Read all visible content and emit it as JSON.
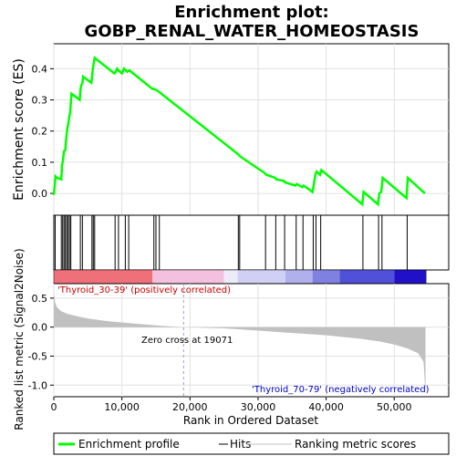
{
  "chart_data": {
    "type": "line",
    "title": "Enrichment plot:\nGOBP_RENAL_WATER_HOMEOSTASIS",
    "es_panel": {
      "ylabel": "Enrichment score (ES)",
      "yticks": [
        0.0,
        0.1,
        0.2,
        0.3,
        0.4
      ],
      "ytick_labels": [
        "0.0",
        "0.1",
        "0.2",
        "0.3",
        "0.4"
      ],
      "ylim": [
        -0.07,
        0.48
      ],
      "grid": true,
      "series": [
        {
          "name": "Enrichment profile",
          "color": "#00ff00",
          "x": [
            0,
            250,
            500,
            1100,
            1200,
            1300,
            1500,
            1700,
            1800,
            2000,
            2100,
            2300,
            2400,
            2600,
            3800,
            3900,
            4000,
            4200,
            4300,
            5500,
            5600,
            5700,
            5800,
            5900,
            6000,
            8900,
            9100,
            9300,
            9500,
            10000,
            10300,
            10800,
            11100,
            14500,
            14800,
            15200,
            27100,
            27300,
            31000,
            31200,
            32500,
            32700,
            33800,
            34000,
            35500,
            35700,
            36500,
            36700,
            38000,
            38200,
            38400,
            38600,
            39100,
            39300,
            45300,
            45500,
            47600,
            47800,
            48100,
            48300,
            51800,
            52000,
            54500
          ],
          "y": [
            -0.005,
            0.055,
            0.05,
            0.045,
            0.09,
            0.1,
            0.135,
            0.14,
            0.17,
            0.21,
            0.22,
            0.25,
            0.26,
            0.32,
            0.3,
            0.33,
            0.345,
            0.355,
            0.375,
            0.355,
            0.37,
            0.395,
            0.41,
            0.42,
            0.435,
            0.385,
            0.39,
            0.4,
            0.395,
            0.385,
            0.4,
            0.39,
            0.395,
            0.335,
            0.335,
            0.33,
            0.125,
            0.12,
            0.065,
            0.06,
            0.05,
            0.045,
            0.04,
            0.035,
            0.025,
            0.03,
            0.02,
            0.025,
            0.005,
            0.03,
            0.06,
            0.07,
            0.06,
            0.075,
            -0.035,
            0.005,
            -0.035,
            0.0,
            0.005,
            0.05,
            -0.015,
            0.05,
            0.0
          ]
        }
      ]
    },
    "hits": [
      200,
      1100,
      1300,
      1500,
      1700,
      1900,
      2100,
      2300,
      2500,
      3900,
      4200,
      5600,
      5800,
      6000,
      9000,
      9500,
      10500,
      11000,
      14700,
      15000,
      15500,
      27100,
      27300,
      31100,
      32600,
      33900,
      35600,
      36600,
      38100,
      38500,
      39200,
      45400,
      47700,
      48200,
      51900
    ],
    "rank_panel": {
      "ylabel": "Ranked list metric (Signal2Noise)",
      "yticks": [
        0.5,
        0.0,
        -0.5,
        -1.0
      ],
      "ytick_labels": [
        "0.5",
        "0.0",
        "-0.5",
        "-1.0"
      ],
      "ylim": [
        -1.2,
        0.75
      ],
      "grid": true,
      "fill_color": "#c0c0c0",
      "profile_x": [
        0,
        200,
        500,
        1000,
        2000,
        3000,
        5000,
        8000,
        12000,
        16000,
        19071,
        25000,
        30000,
        35000,
        40000,
        45000,
        48000,
        50000,
        52000,
        53500,
        54300,
        54600
      ],
      "profile_y": [
        0.62,
        0.42,
        0.34,
        0.28,
        0.23,
        0.2,
        0.15,
        0.1,
        0.06,
        0.02,
        0.0,
        -0.02,
        -0.06,
        -0.1,
        -0.14,
        -0.2,
        -0.25,
        -0.3,
        -0.37,
        -0.45,
        -0.6,
        -1.15
      ],
      "positive_label": "'Thyroid_30-39' (positively correlated)",
      "negative_label": "'Thyroid_70-79' (negatively correlated)",
      "zero_cross_label": "Zero cross at 19071",
      "zero_cross": 19071
    },
    "xlabel": "Rank in Ordered Dataset",
    "xticks": [
      0,
      10000,
      20000,
      30000,
      40000,
      50000
    ],
    "xtick_labels": [
      "0",
      "10,000",
      "20,000",
      "30,000",
      "40,000",
      "50,000"
    ],
    "xlim": [
      0,
      58000
    ],
    "n_genes": 54675,
    "heatmap_colors": [
      {
        "from": 0,
        "to": 14500,
        "color": "#f0707a"
      },
      {
        "from": 14500,
        "to": 25000,
        "color": "#f4c0e0"
      },
      {
        "from": 25000,
        "to": 27000,
        "color": "#ececf8"
      },
      {
        "from": 27000,
        "to": 34000,
        "color": "#d0d0f4"
      },
      {
        "from": 34000,
        "to": 38000,
        "color": "#b0b0ec"
      },
      {
        "from": 38000,
        "to": 42000,
        "color": "#8080e0"
      },
      {
        "from": 42000,
        "to": 50000,
        "color": "#5050d8"
      },
      {
        "from": 50000,
        "to": 54675,
        "color": "#2010c8"
      }
    ],
    "legend": {
      "placement": "bottom",
      "items": [
        {
          "label": "Enrichment profile",
          "color": "#00ff00",
          "kind": "line"
        },
        {
          "label": "Hits",
          "color": "#000000",
          "kind": "line"
        },
        {
          "label": "Ranking metric scores",
          "color": "#c0c0c0",
          "kind": "line"
        }
      ]
    }
  }
}
